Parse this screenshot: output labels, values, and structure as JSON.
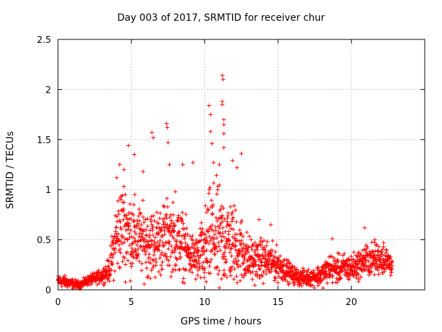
{
  "chart_data": {
    "type": "scatter",
    "title": "Day 003 of 2017, SRMTID for receiver chur",
    "xlabel": "GPS time / hours",
    "ylabel": "SRMTID / TECUs",
    "xlim": [
      0,
      25
    ],
    "ylim": [
      0,
      2.5
    ],
    "xticks": [
      0,
      5,
      10,
      15,
      20
    ],
    "yticks": [
      0,
      0.5,
      1,
      1.5,
      2,
      2.5
    ],
    "grid": true,
    "marker": "+",
    "color": "#ff0000",
    "envelope": {
      "hours": [
        0.0,
        0.5,
        1.0,
        1.5,
        2.0,
        2.5,
        3.0,
        3.5,
        4.0,
        4.5,
        5.0,
        5.5,
        6.0,
        6.5,
        7.0,
        7.5,
        8.0,
        8.5,
        9.0,
        9.5,
        10.0,
        10.5,
        11.0,
        11.5,
        12.0,
        12.5,
        13.0,
        13.5,
        14.0,
        14.5,
        15.0,
        15.5,
        16.0,
        16.5,
        17.0,
        17.5,
        18.0,
        18.5,
        19.0,
        19.5,
        20.0,
        20.5,
        21.0,
        21.5,
        22.0,
        22.5,
        22.8
      ],
      "median": [
        0.09,
        0.08,
        0.06,
        0.05,
        0.09,
        0.11,
        0.14,
        0.2,
        0.55,
        0.65,
        0.55,
        0.5,
        0.48,
        0.45,
        0.5,
        0.55,
        0.5,
        0.45,
        0.35,
        0.3,
        0.4,
        0.55,
        0.5,
        0.5,
        0.45,
        0.4,
        0.3,
        0.3,
        0.3,
        0.28,
        0.25,
        0.2,
        0.15,
        0.12,
        0.12,
        0.13,
        0.15,
        0.22,
        0.2,
        0.22,
        0.22,
        0.25,
        0.3,
        0.3,
        0.32,
        0.28,
        0.25
      ],
      "spread": [
        0.05,
        0.05,
        0.04,
        0.03,
        0.04,
        0.05,
        0.06,
        0.1,
        0.35,
        0.4,
        0.35,
        0.3,
        0.3,
        0.3,
        0.3,
        0.3,
        0.3,
        0.28,
        0.2,
        0.2,
        0.35,
        0.45,
        0.45,
        0.4,
        0.35,
        0.3,
        0.2,
        0.18,
        0.18,
        0.16,
        0.14,
        0.1,
        0.08,
        0.07,
        0.07,
        0.08,
        0.1,
        0.12,
        0.12,
        0.12,
        0.12,
        0.12,
        0.14,
        0.14,
        0.14,
        0.12,
        0.1
      ]
    },
    "outliers": [
      {
        "x": 4.2,
        "y": 1.25
      },
      {
        "x": 4.5,
        "y": 1.2
      },
      {
        "x": 4.8,
        "y": 1.44
      },
      {
        "x": 5.2,
        "y": 1.35
      },
      {
        "x": 6.4,
        "y": 1.57
      },
      {
        "x": 6.5,
        "y": 1.52
      },
      {
        "x": 7.4,
        "y": 1.66
      },
      {
        "x": 7.45,
        "y": 1.62
      },
      {
        "x": 7.5,
        "y": 1.47
      },
      {
        "x": 7.6,
        "y": 1.25
      },
      {
        "x": 8.5,
        "y": 1.25
      },
      {
        "x": 9.2,
        "y": 1.27
      },
      {
        "x": 10.3,
        "y": 1.84
      },
      {
        "x": 10.4,
        "y": 1.75
      },
      {
        "x": 10.4,
        "y": 1.58
      },
      {
        "x": 10.5,
        "y": 1.46
      },
      {
        "x": 10.6,
        "y": 1.27
      },
      {
        "x": 11.2,
        "y": 2.14
      },
      {
        "x": 11.25,
        "y": 2.1
      },
      {
        "x": 11.2,
        "y": 1.88
      },
      {
        "x": 11.2,
        "y": 1.85
      },
      {
        "x": 11.3,
        "y": 1.7
      },
      {
        "x": 11.3,
        "y": 1.65
      },
      {
        "x": 11.3,
        "y": 1.56
      },
      {
        "x": 11.3,
        "y": 1.42
      },
      {
        "x": 11.0,
        "y": 1.25
      },
      {
        "x": 11.9,
        "y": 1.29
      },
      {
        "x": 12.5,
        "y": 1.36
      },
      {
        "x": 12.2,
        "y": 1.22
      },
      {
        "x": 4.0,
        "y": 1.12
      },
      {
        "x": 5.8,
        "y": 1.18
      },
      {
        "x": 8.0,
        "y": 0.98
      },
      {
        "x": 11.0,
        "y": 0.02
      },
      {
        "x": 10.1,
        "y": 0.08
      },
      {
        "x": 13.7,
        "y": 0.7
      },
      {
        "x": 14.5,
        "y": 0.65
      },
      {
        "x": 18.7,
        "y": 0.51
      },
      {
        "x": 20.9,
        "y": 0.62
      },
      {
        "x": 21.6,
        "y": 0.5
      },
      {
        "x": 22.2,
        "y": 0.47
      }
    ]
  }
}
